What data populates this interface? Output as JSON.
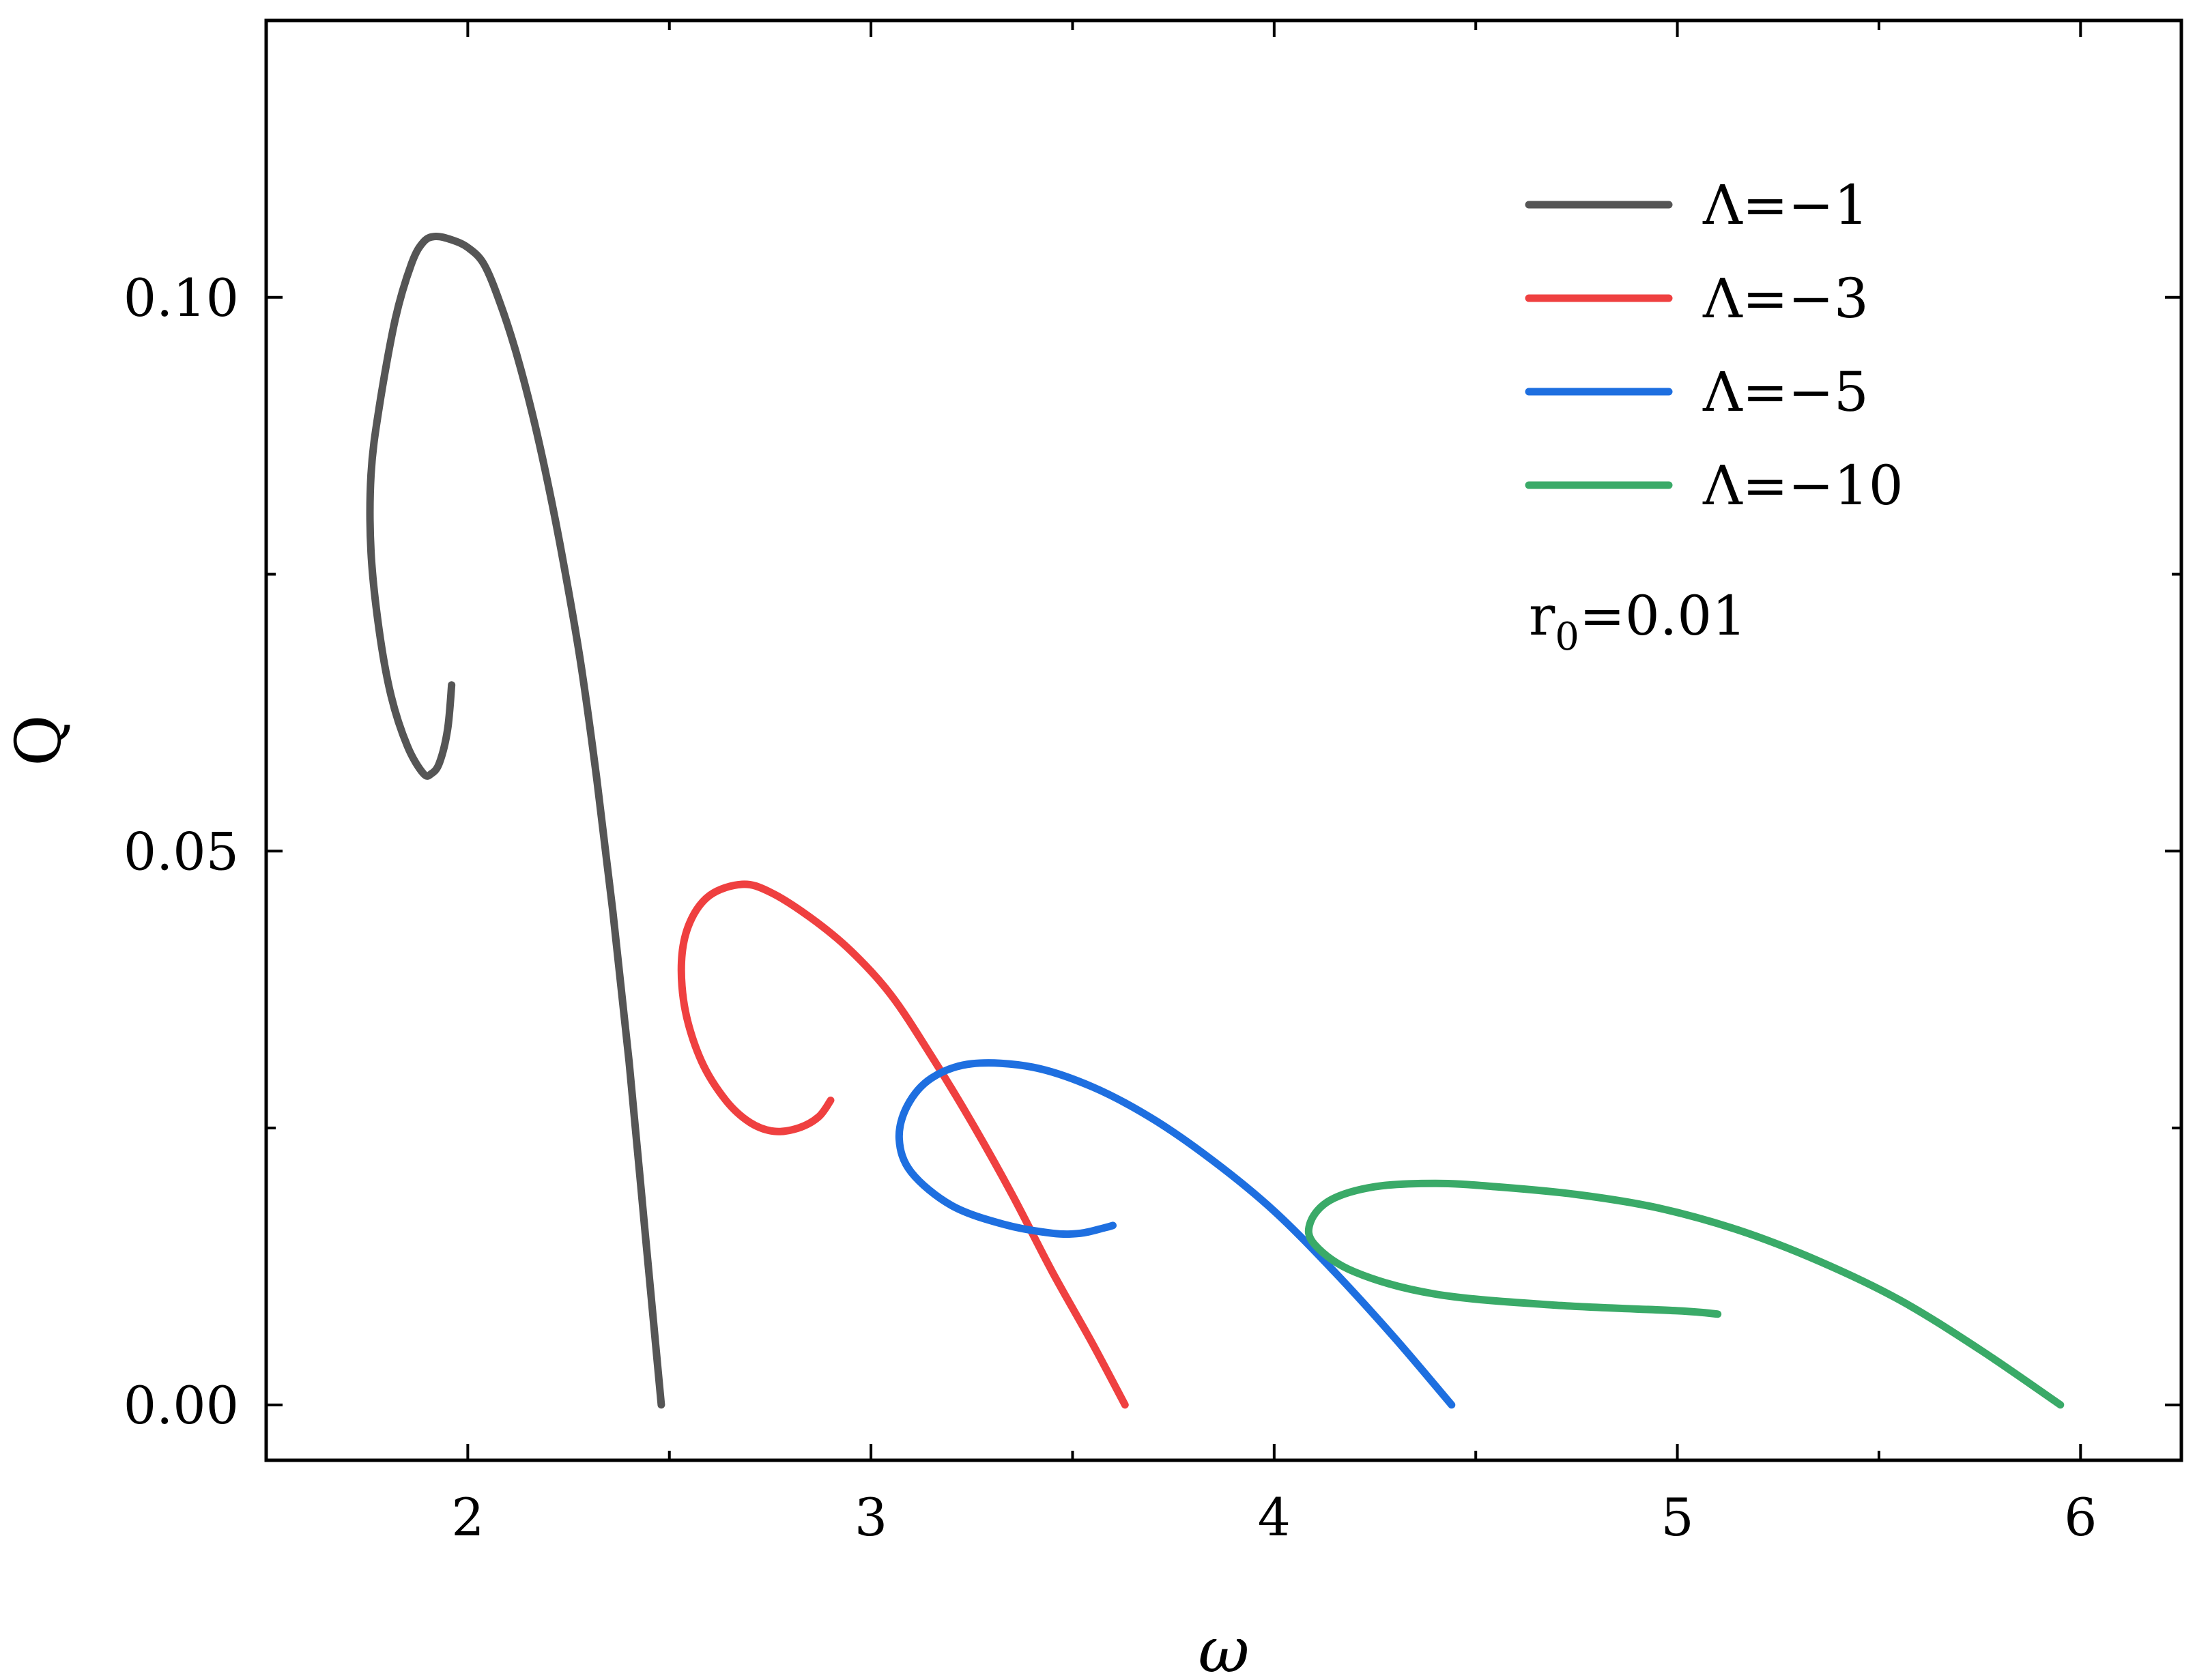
{
  "chart_data": {
    "type": "line",
    "xlabel": "ω",
    "ylabel": "Q",
    "xlim": [
      1.5,
      6.25
    ],
    "ylim": [
      -0.005,
      0.125
    ],
    "xticks": [
      2,
      3,
      4,
      5,
      6
    ],
    "xtick_labels": [
      "2",
      "3",
      "4",
      "5",
      "6"
    ],
    "yticks": [
      0.0,
      0.05,
      0.1
    ],
    "ytick_labels": [
      "0.00",
      "0.05",
      "0.10"
    ],
    "xminor": [
      2.5,
      3.5,
      4.5,
      5.5
    ],
    "yminor": [
      0.025,
      0.075
    ],
    "grid": false,
    "legend_position": "top-right",
    "annotation": {
      "base": "r",
      "sub": "0",
      "rest": "=0.01"
    },
    "series": [
      {
        "name": "Λ=−1",
        "color": "#555555",
        "x": [
          2.48,
          2.44,
          2.4,
          2.36,
          2.32,
          2.28,
          2.24,
          2.2,
          2.16,
          2.12,
          2.08,
          2.04,
          2.0,
          1.96,
          1.92,
          1.89,
          1.86,
          1.82,
          1.78,
          1.76,
          1.76,
          1.78,
          1.81,
          1.85,
          1.89,
          1.91,
          1.93,
          1.95,
          1.96
        ],
        "y": [
          0.0,
          0.0155,
          0.031,
          0.0445,
          0.0565,
          0.067,
          0.0755,
          0.083,
          0.0895,
          0.095,
          0.0995,
          0.103,
          0.1045,
          0.1052,
          0.1055,
          0.105,
          0.103,
          0.098,
          0.09,
          0.084,
          0.077,
          0.07,
          0.064,
          0.0595,
          0.057,
          0.057,
          0.058,
          0.061,
          0.065
        ]
      },
      {
        "name": "Λ=−3",
        "color": "#ef4040",
        "x": [
          3.63,
          3.55,
          3.45,
          3.35,
          3.25,
          3.15,
          3.05,
          2.95,
          2.85,
          2.75,
          2.68,
          2.6,
          2.55,
          2.53,
          2.54,
          2.58,
          2.64,
          2.7,
          2.76,
          2.82,
          2.87,
          2.9
        ],
        "y": [
          0.0,
          0.0055,
          0.012,
          0.019,
          0.0255,
          0.0315,
          0.037,
          0.041,
          0.044,
          0.0463,
          0.047,
          0.046,
          0.0435,
          0.04,
          0.0355,
          0.031,
          0.0275,
          0.0255,
          0.0247,
          0.025,
          0.026,
          0.0275
        ]
      },
      {
        "name": "Λ=−5",
        "color": "#1e6fe0",
        "x": [
          4.44,
          4.3,
          4.15,
          4.0,
          3.85,
          3.7,
          3.55,
          3.4,
          3.25,
          3.15,
          3.09,
          3.07,
          3.1,
          3.2,
          3.33,
          3.45,
          3.52,
          3.58,
          3.6
        ],
        "y": [
          0.0,
          0.006,
          0.012,
          0.0175,
          0.022,
          0.0258,
          0.0287,
          0.0305,
          0.0308,
          0.0295,
          0.027,
          0.024,
          0.021,
          0.018,
          0.0163,
          0.0155,
          0.0155,
          0.016,
          0.0162
        ]
      },
      {
        "name": "Λ=−10",
        "color": "#3aaa68",
        "x": [
          5.95,
          5.75,
          5.55,
          5.35,
          5.15,
          4.95,
          4.75,
          4.55,
          4.4,
          4.25,
          4.14,
          4.09,
          4.1,
          4.2,
          4.4,
          4.7,
          5.0,
          5.1
        ],
        "y": [
          0.0,
          0.005,
          0.0095,
          0.013,
          0.0158,
          0.0178,
          0.019,
          0.0197,
          0.02,
          0.0197,
          0.0185,
          0.0165,
          0.0145,
          0.012,
          0.01,
          0.009,
          0.0085,
          0.0082
        ]
      }
    ]
  }
}
